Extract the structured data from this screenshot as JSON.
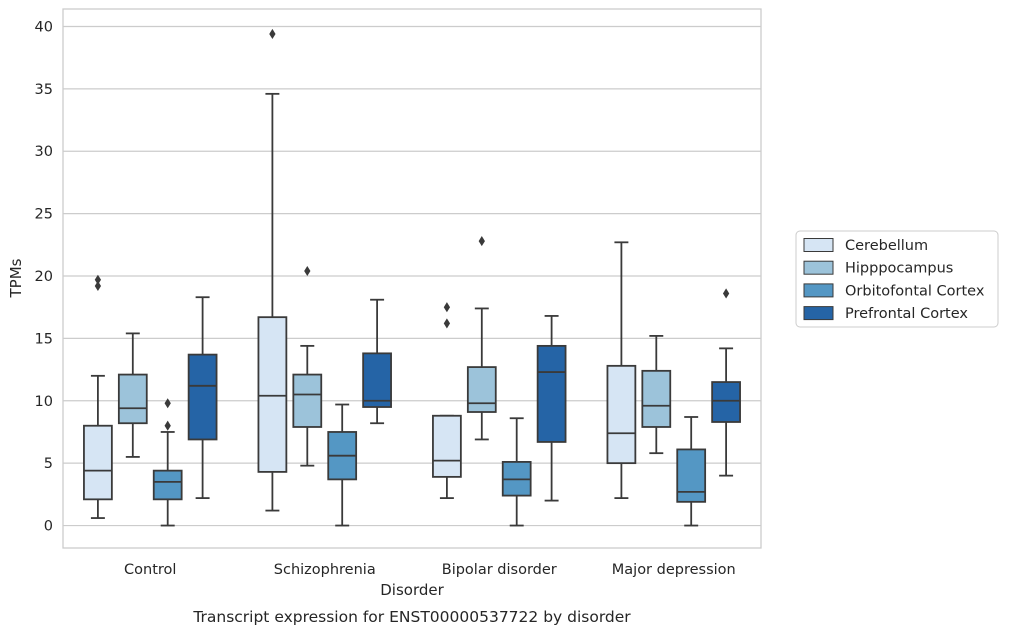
{
  "chart_data": {
    "type": "box",
    "title": "",
    "caption": "Transcript expression for ENST00000537722 by disorder",
    "xlabel": "Disorder",
    "ylabel": "TPMs",
    "categories": [
      "Control",
      "Schizophrenia",
      "Bipolar disorder",
      "Major depression"
    ],
    "ylim": [
      -1.8,
      41.4
    ],
    "yticks": [
      0,
      5,
      10,
      15,
      20,
      25,
      30,
      35,
      40
    ],
    "grid": true,
    "legend_position": "right",
    "series": [
      {
        "name": "Cerebellum",
        "color": "#d6e5f4",
        "boxes": [
          {
            "category": "Control",
            "whisker_low": 0.6,
            "q1": 2.1,
            "median": 4.4,
            "q3": 8.0,
            "whisker_high": 12.0,
            "outliers": [
              19.2,
              19.7
            ]
          },
          {
            "category": "Schizophrenia",
            "whisker_low": 1.2,
            "q1": 4.3,
            "median": 10.4,
            "q3": 16.7,
            "whisker_high": 34.6,
            "outliers": [
              39.4
            ]
          },
          {
            "category": "Bipolar disorder",
            "whisker_low": 2.2,
            "q1": 3.9,
            "median": 5.2,
            "q3": 8.8,
            "whisker_high": 8.8,
            "outliers": [
              16.2,
              17.5
            ]
          },
          {
            "category": "Major depression",
            "whisker_low": 2.2,
            "q1": 5.0,
            "median": 7.4,
            "q3": 12.8,
            "whisker_high": 22.7,
            "outliers": []
          }
        ]
      },
      {
        "name": "Hipppocampus",
        "color": "#9cc3da",
        "boxes": [
          {
            "category": "Control",
            "whisker_low": 5.5,
            "q1": 8.2,
            "median": 9.4,
            "q3": 12.1,
            "whisker_high": 15.4,
            "outliers": []
          },
          {
            "category": "Schizophrenia",
            "whisker_low": 4.8,
            "q1": 7.9,
            "median": 10.5,
            "q3": 12.1,
            "whisker_high": 14.4,
            "outliers": [
              20.4
            ]
          },
          {
            "category": "Bipolar disorder",
            "whisker_low": 6.9,
            "q1": 9.1,
            "median": 9.8,
            "q3": 12.7,
            "whisker_high": 17.4,
            "outliers": [
              22.8
            ]
          },
          {
            "category": "Major depression",
            "whisker_low": 5.8,
            "q1": 7.9,
            "median": 9.6,
            "q3": 12.4,
            "whisker_high": 15.2,
            "outliers": []
          }
        ]
      },
      {
        "name": "Orbitofontal Cortex",
        "color": "#5497c4",
        "boxes": [
          {
            "category": "Control",
            "whisker_low": 0.0,
            "q1": 2.1,
            "median": 3.5,
            "q3": 4.4,
            "whisker_high": 7.5,
            "outliers": [
              8.0,
              9.8
            ]
          },
          {
            "category": "Schizophrenia",
            "whisker_low": 0.0,
            "q1": 3.7,
            "median": 5.6,
            "q3": 7.5,
            "whisker_high": 9.7,
            "outliers": []
          },
          {
            "category": "Bipolar disorder",
            "whisker_low": 0.0,
            "q1": 2.4,
            "median": 3.7,
            "q3": 5.1,
            "whisker_high": 8.6,
            "outliers": []
          },
          {
            "category": "Major depression",
            "whisker_low": 0.0,
            "q1": 1.9,
            "median": 2.7,
            "q3": 6.1,
            "whisker_high": 8.7,
            "outliers": []
          }
        ]
      },
      {
        "name": "Prefrontal Cortex",
        "color": "#2564a6",
        "boxes": [
          {
            "category": "Control",
            "whisker_low": 2.2,
            "q1": 6.9,
            "median": 11.2,
            "q3": 13.7,
            "whisker_high": 18.3,
            "outliers": []
          },
          {
            "category": "Schizophrenia",
            "whisker_low": 8.2,
            "q1": 9.5,
            "median": 10.0,
            "q3": 13.8,
            "whisker_high": 18.1,
            "outliers": []
          },
          {
            "category": "Bipolar disorder",
            "whisker_low": 2.0,
            "q1": 6.7,
            "median": 12.3,
            "q3": 14.4,
            "whisker_high": 16.8,
            "outliers": []
          },
          {
            "category": "Major depression",
            "whisker_low": 4.0,
            "q1": 8.3,
            "median": 10.0,
            "q3": 11.5,
            "whisker_high": 14.2,
            "outliers": [
              18.6
            ]
          }
        ]
      }
    ]
  }
}
